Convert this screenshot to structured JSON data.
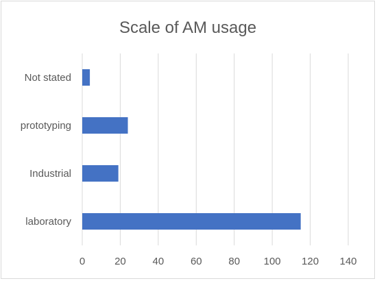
{
  "chart_data": {
    "type": "bar",
    "orientation": "horizontal",
    "title": "Scale of AM usage",
    "categories": [
      "Not stated",
      "prototyping",
      "Industrial",
      "laboratory"
    ],
    "values": [
      4,
      24,
      19,
      115
    ],
    "xlim": [
      0,
      140
    ],
    "xticks": [
      0,
      20,
      40,
      60,
      80,
      100,
      120,
      140
    ],
    "grid": true,
    "colors": {
      "bar": "#4472C4"
    }
  }
}
